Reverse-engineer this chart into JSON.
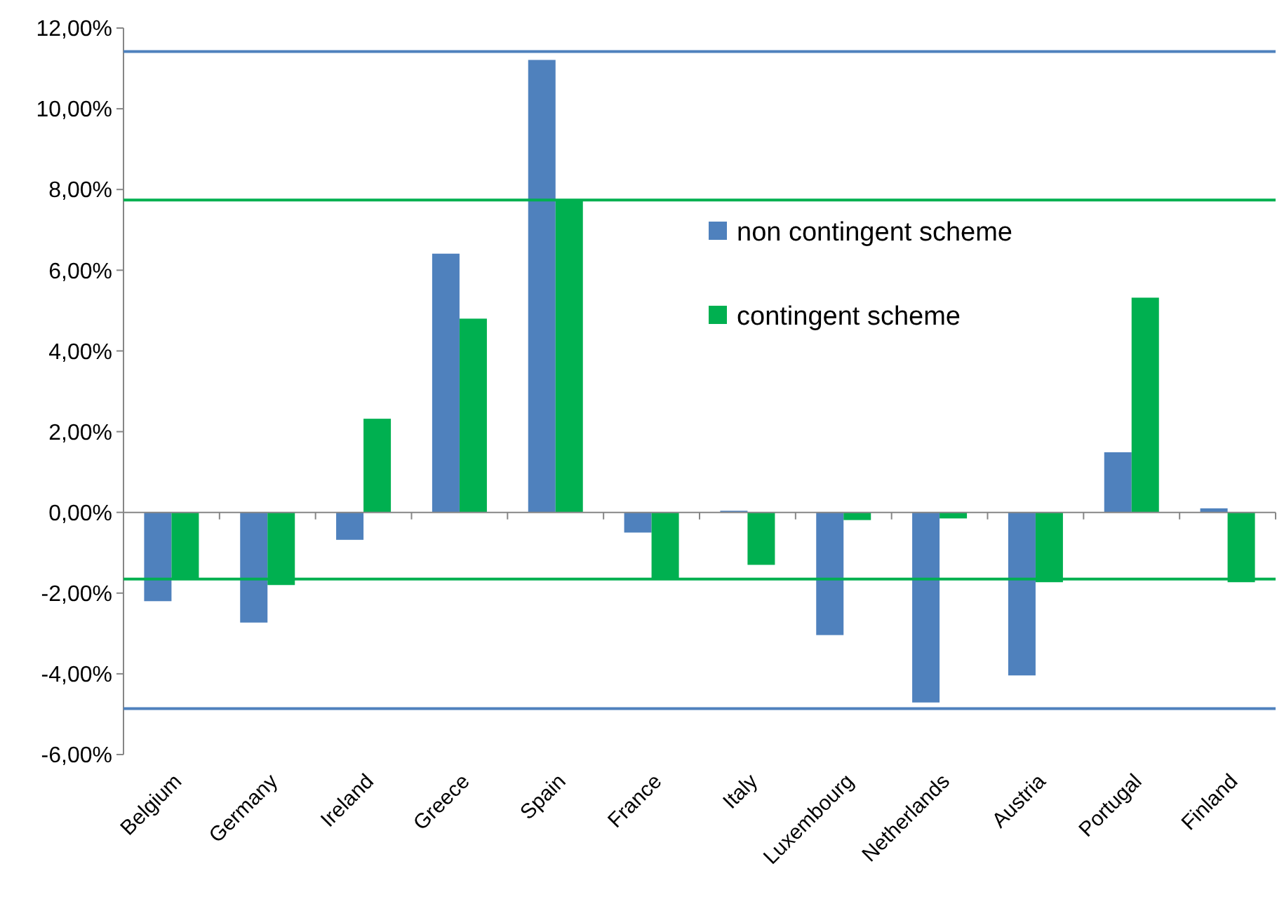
{
  "chart_data": {
    "type": "bar",
    "categories": [
      "Belgium",
      "Germany",
      "Ireland",
      "Greece",
      "Spain",
      "France",
      "Italy",
      "Luxembourg",
      "Netherlands",
      "Austria",
      "Portugal",
      "Finland"
    ],
    "series": [
      {
        "name": "non contingent scheme",
        "color": "#4f81bd",
        "values": [
          -2.2,
          -2.73,
          -0.68,
          6.41,
          11.21,
          -0.5,
          0.04,
          -3.04,
          -4.71,
          -4.04,
          1.49,
          0.1
        ]
      },
      {
        "name": "contingent scheme",
        "color": "#00b050",
        "values": [
          -1.67,
          -1.8,
          2.32,
          4.8,
          7.74,
          -1.67,
          -1.3,
          -0.19,
          -0.15,
          -1.73,
          5.32,
          -1.73
        ]
      }
    ],
    "ylim": [
      -6,
      12
    ],
    "yticks": [
      {
        "value": -6,
        "label": "-6,00%"
      },
      {
        "value": -4,
        "label": "-4,00%"
      },
      {
        "value": -2,
        "label": "-2,00%"
      },
      {
        "value": 0,
        "label": "0,00%"
      },
      {
        "value": 2,
        "label": "2,00%"
      },
      {
        "value": 4,
        "label": "4,00%"
      },
      {
        "value": 6,
        "label": "6,00%"
      },
      {
        "value": 8,
        "label": "8,00%"
      },
      {
        "value": 10,
        "label": "10,00%"
      },
      {
        "value": 12,
        "label": "12,00%"
      }
    ],
    "ref_lines": [
      {
        "axis": "y",
        "value": 11.42,
        "color": "#4f81bd"
      },
      {
        "axis": "y",
        "value": -4.86,
        "color": "#4f81bd"
      },
      {
        "axis": "y",
        "value": 7.74,
        "color": "#00b050"
      },
      {
        "axis": "y",
        "value": -1.65,
        "color": "#00b050"
      }
    ],
    "legend": "top right"
  }
}
